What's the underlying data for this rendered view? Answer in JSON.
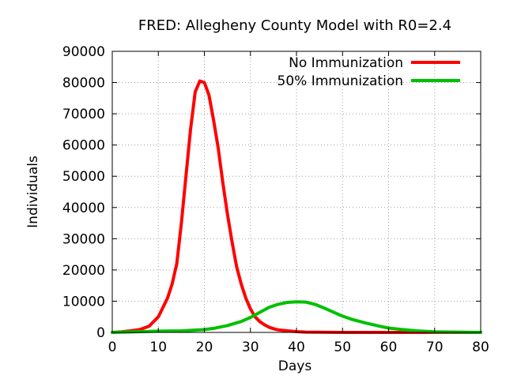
{
  "chart_data": {
    "type": "line",
    "title": "FRED: Allegheny County Model with R0=2.4",
    "xlabel": "Days",
    "ylabel": "Individuals",
    "xlim": [
      0,
      80
    ],
    "ylim": [
      0,
      90000
    ],
    "xticks": [
      0,
      10,
      20,
      30,
      40,
      50,
      60,
      70,
      80
    ],
    "yticks": [
      0,
      10000,
      20000,
      30000,
      40000,
      50000,
      60000,
      70000,
      80000,
      90000
    ],
    "grid": true,
    "legend_position": "top-right",
    "series": [
      {
        "name": "No Immunization",
        "color": "#ff0000",
        "x": [
          0,
          2,
          4,
          6,
          8,
          10,
          12,
          13,
          14,
          15,
          16,
          17,
          18,
          19,
          20,
          21,
          22,
          23,
          24,
          25,
          26,
          27,
          28,
          29,
          30,
          31,
          32,
          33,
          34,
          35,
          36,
          38,
          40,
          42,
          45,
          50,
          55,
          60,
          65,
          70,
          75,
          80
        ],
        "y": [
          0,
          200,
          500,
          900,
          2000,
          5000,
          11000,
          15500,
          22000,
          35000,
          50000,
          65000,
          77000,
          80500,
          80000,
          76000,
          68000,
          59000,
          48000,
          38000,
          29000,
          21000,
          15500,
          11000,
          7500,
          5000,
          3500,
          2500,
          1700,
          1200,
          800,
          500,
          250,
          100,
          50,
          0,
          0,
          0,
          0,
          0,
          0,
          0
        ]
      },
      {
        "name": "50% Immunization",
        "color": "#00c000",
        "x": [
          0,
          5,
          10,
          15,
          20,
          22,
          25,
          28,
          30,
          32,
          34,
          36,
          38,
          40,
          42,
          44,
          46,
          48,
          50,
          52,
          55,
          58,
          60,
          63,
          66,
          70,
          75,
          80
        ],
        "y": [
          0,
          200,
          400,
          500,
          900,
          1300,
          2200,
          3500,
          4800,
          6400,
          8000,
          9000,
          9600,
          9800,
          9700,
          9000,
          7800,
          6500,
          5200,
          4200,
          3000,
          2000,
          1400,
          900,
          500,
          200,
          100,
          0
        ]
      }
    ]
  }
}
